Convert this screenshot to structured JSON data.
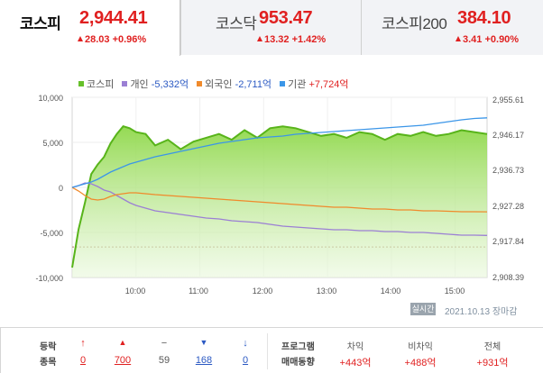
{
  "tabs": [
    {
      "name": "코스피",
      "price": "2,944.41",
      "change": "28.03 +0.96%"
    },
    {
      "name": "코스닥",
      "price": "953.47",
      "change": "13.32 +1.42%"
    },
    {
      "name": "코스피200",
      "price": "384.10",
      "change": "3.41 +0.90%"
    }
  ],
  "legend": [
    {
      "name": "코스피",
      "value": "",
      "color": "#66c02a"
    },
    {
      "name": "개인",
      "value": "-5,332억",
      "color": "#9b7fd4"
    },
    {
      "name": "외국인",
      "value": "-2,711억",
      "color": "#f08a2c"
    },
    {
      "name": "기관",
      "value": "+7,724억",
      "color": "#3b96e8"
    }
  ],
  "chart_data": {
    "type": "line",
    "left_axis": {
      "ticks": [
        "10,000",
        "5,000",
        "0",
        "-5,000",
        "-10,000"
      ],
      "range": [
        -10000,
        10000
      ]
    },
    "right_axis": {
      "ticks": [
        "2,955.61",
        "2,946.17",
        "2,936.73",
        "2,927.28",
        "2,917.84",
        "2,908.39"
      ],
      "range": [
        2908.39,
        2955.61
      ]
    },
    "x_ticks": [
      "10:00",
      "11:00",
      "12:00",
      "13:00",
      "14:00",
      "15:00"
    ],
    "x": [
      9.0,
      9.1,
      9.2,
      9.3,
      9.4,
      9.5,
      9.6,
      9.7,
      9.8,
      9.9,
      10.0,
      10.15,
      10.3,
      10.5,
      10.7,
      10.9,
      11.1,
      11.3,
      11.5,
      11.7,
      11.9,
      12.1,
      12.3,
      12.5,
      12.7,
      12.9,
      13.1,
      13.3,
      13.5,
      13.7,
      13.9,
      14.1,
      14.3,
      14.5,
      14.7,
      14.9,
      15.1,
      15.3,
      15.5
    ],
    "series": [
      {
        "name": "코스피",
        "values": [
          2911.0,
          2921.0,
          2928.0,
          2935.5,
          2938.0,
          2940.0,
          2943.5,
          2946.0,
          2948.0,
          2947.5,
          2946.5,
          2946.0,
          2943.0,
          2944.5,
          2942.0,
          2944.0,
          2945.0,
          2946.0,
          2944.5,
          2947.0,
          2945.0,
          2947.5,
          2948.0,
          2947.5,
          2946.5,
          2945.5,
          2946.0,
          2945.0,
          2946.5,
          2946.0,
          2944.5,
          2946.0,
          2945.5,
          2946.5,
          2945.5,
          2946.0,
          2947.0,
          2946.5,
          2946.0
        ]
      },
      {
        "name": "개인",
        "values": [
          0,
          200,
          500,
          400,
          100,
          -300,
          -500,
          -900,
          -1300,
          -1700,
          -2000,
          -2300,
          -2600,
          -2800,
          -3000,
          -3200,
          -3400,
          -3500,
          -3700,
          -3800,
          -3900,
          -4100,
          -4300,
          -4400,
          -4500,
          -4600,
          -4700,
          -4700,
          -4800,
          -4800,
          -4900,
          -4900,
          -5000,
          -5000,
          -5100,
          -5200,
          -5300,
          -5300,
          -5332
        ]
      },
      {
        "name": "외국인",
        "values": [
          0,
          -400,
          -900,
          -1300,
          -1400,
          -1300,
          -1000,
          -800,
          -700,
          -600,
          -600,
          -700,
          -800,
          -900,
          -1000,
          -1100,
          -1200,
          -1300,
          -1400,
          -1500,
          -1600,
          -1700,
          -1800,
          -1900,
          -2000,
          -2100,
          -2200,
          -2200,
          -2300,
          -2400,
          -2400,
          -2500,
          -2500,
          -2600,
          -2600,
          -2650,
          -2700,
          -2700,
          -2711
        ]
      },
      {
        "name": "기관",
        "values": [
          0,
          200,
          400,
          600,
          900,
          1300,
          1700,
          2000,
          2300,
          2600,
          2800,
          3100,
          3400,
          3700,
          4000,
          4300,
          4600,
          4900,
          5100,
          5300,
          5500,
          5600,
          5700,
          5900,
          6000,
          6100,
          6200,
          6300,
          6400,
          6500,
          6600,
          6700,
          6800,
          6900,
          7100,
          7300,
          7500,
          7650,
          7724
        ]
      }
    ]
  },
  "status": {
    "badge": "실시간",
    "date": "2021.10.13 장마감"
  },
  "stats": {
    "head_line1": "등락",
    "head_line2": "종목",
    "items": [
      {
        "icon": "↑",
        "value": "0",
        "color": "#e02020"
      },
      {
        "icon": "▲",
        "value": "700",
        "color": "#e02020"
      },
      {
        "icon": "−",
        "value": "59",
        "color": "#555555"
      },
      {
        "icon": "▼",
        "value": "168",
        "color": "#2b59c3"
      },
      {
        "icon": "↓",
        "value": "0",
        "color": "#2b59c3"
      }
    ],
    "program_line1": "프로그램",
    "program_line2": "매매동향",
    "program": [
      {
        "label": "차익",
        "value": "+443억"
      },
      {
        "label": "비차익",
        "value": "+488억"
      },
      {
        "label": "전체",
        "value": "+931억"
      }
    ]
  }
}
